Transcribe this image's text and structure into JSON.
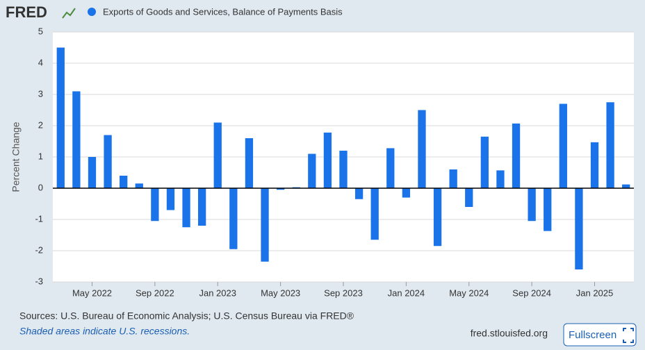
{
  "logo": "FRED",
  "chart_data": {
    "type": "bar",
    "series": [
      {
        "name": "Exports of Goods and Services, Balance of Payments Basis",
        "color": "#1a73e8",
        "values": [
          4.5,
          3.1,
          1.0,
          1.7,
          0.4,
          0.15,
          -1.05,
          -0.7,
          -1.25,
          -1.2,
          2.1,
          -1.95,
          1.6,
          -2.35,
          -0.05,
          0.03,
          1.1,
          1.78,
          1.2,
          -0.35,
          -1.65,
          1.28,
          -0.3,
          2.5,
          -1.85,
          0.6,
          -0.6,
          1.65,
          0.57,
          2.07,
          -1.05,
          -1.37,
          2.7,
          -2.6,
          1.47,
          2.75,
          0.12
        ]
      }
    ],
    "categories": [
      null,
      null,
      "May 2022",
      null,
      null,
      null,
      "Sep 2022",
      null,
      null,
      null,
      "Jan 2023",
      null,
      null,
      null,
      "May 2023",
      null,
      null,
      null,
      "Sep 2023",
      null,
      null,
      null,
      "Jan 2024",
      null,
      null,
      null,
      "May 2024",
      null,
      null,
      null,
      "Sep 2024",
      null,
      null,
      null,
      "Jan 2025",
      null,
      null
    ],
    "y_label": "Percent Change",
    "ylim": [
      -3,
      5
    ],
    "yticks": [
      -3,
      -2,
      -1,
      0,
      1,
      2,
      3,
      4,
      5
    ],
    "grid": true
  },
  "sources": "Sources: U.S. Bureau of Economic Analysis; U.S. Census Bureau via FRED®",
  "note": "Shaded areas indicate U.S. recessions.",
  "site": "fred.stlouisfed.org",
  "button": "Fullscreen"
}
